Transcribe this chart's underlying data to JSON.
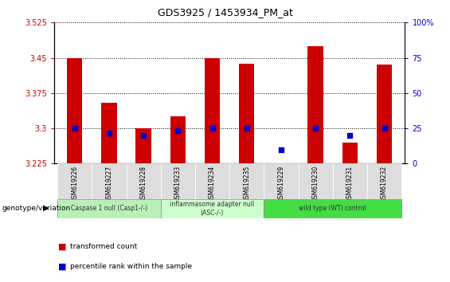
{
  "title": "GDS3925 / 1453934_PM_at",
  "samples": [
    "GSM619226",
    "GSM619227",
    "GSM619228",
    "GSM619233",
    "GSM619234",
    "GSM619235",
    "GSM619229",
    "GSM619230",
    "GSM619231",
    "GSM619232"
  ],
  "red_values": [
    3.45,
    3.355,
    3.3,
    3.325,
    3.45,
    3.438,
    3.225,
    3.475,
    3.27,
    3.435
  ],
  "blue_values": [
    3.3,
    3.29,
    3.285,
    3.295,
    3.3,
    3.3,
    3.255,
    3.3,
    3.285,
    3.3
  ],
  "ymin": 3.225,
  "ymax": 3.525,
  "yticks": [
    3.225,
    3.3,
    3.375,
    3.45,
    3.525
  ],
  "right_yticks": [
    0,
    25,
    50,
    75,
    100
  ],
  "right_yticklabels": [
    "0",
    "25",
    "50",
    "75",
    "100%"
  ],
  "groups": [
    {
      "label": "Caspase 1 null (Casp1-/-)",
      "start": 0,
      "end": 3,
      "color": "#b8f0b8"
    },
    {
      "label": "inflammasome adapter null\n(ASC-/-)",
      "start": 3,
      "end": 6,
      "color": "#ccffcc"
    },
    {
      "label": "wild type (WT) control",
      "start": 6,
      "end": 10,
      "color": "#44dd44"
    }
  ],
  "bar_color_red": "#cc0000",
  "bar_color_blue": "#0000cc",
  "bar_width": 0.45,
  "grid_color": "#000000",
  "left_tick_color": "#cc0000",
  "right_tick_color": "#0000cc",
  "legend_red": "transformed count",
  "legend_blue": "percentile rank within the sample",
  "genotype_label": "genotype/variation"
}
